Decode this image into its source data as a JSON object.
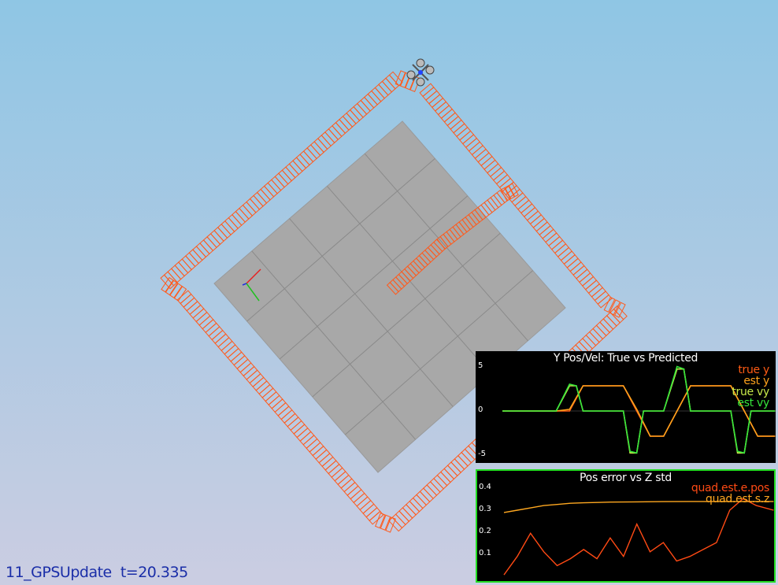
{
  "status": {
    "scenario": "11_GPSUpdate",
    "time_label": "t=20.335"
  },
  "colors": {
    "sky_top": "#8fc6e4",
    "sky_bottom": "#cbcde2",
    "floor": "#a8a8a8",
    "trajectory": "#ff5a1c",
    "plot_bg": "#000000",
    "plot2_border": "#22dd22"
  },
  "icons": {
    "quad": "quadrotor-icon",
    "axes": "xyz-axes-gizmo-icon"
  },
  "plot1": {
    "title": "Y Pos/Vel: True vs Predicted",
    "ticks": [
      "5",
      "0",
      "-5"
    ],
    "legend": [
      {
        "label": "true y",
        "color": "#ff5b14"
      },
      {
        "label": "est y",
        "color": "#ffa21c"
      },
      {
        "label": "true vy",
        "color": "#c7e84a"
      },
      {
        "label": "est vy",
        "color": "#35e53a"
      }
    ]
  },
  "plot2": {
    "title": "Pos error vs Z std",
    "ticks": [
      "0.4",
      "0.3",
      "0.2",
      "0.1"
    ],
    "legend": [
      {
        "label": "quad.est.e.pos",
        "color": "#ff4a14"
      },
      {
        "label": "quad.est.s.z",
        "color": "#ffa820"
      }
    ]
  },
  "chart_data": [
    {
      "type": "line",
      "title": "Y Pos/Vel: True vs Predicted",
      "x_range": [
        0,
        20.335
      ],
      "ylim": [
        -6,
        6
      ],
      "series": [
        {
          "name": "true y",
          "x": [
            0,
            4,
            5,
            6,
            9,
            10,
            11,
            12,
            13,
            14,
            17,
            18,
            19,
            20.3
          ],
          "values": [
            0,
            0,
            0,
            3,
            3,
            0,
            -3,
            -3,
            0,
            3,
            3,
            0,
            -3,
            -3
          ]
        },
        {
          "name": "est y",
          "x": [
            0,
            4,
            5,
            6,
            9,
            10,
            11,
            12,
            13,
            14,
            17,
            18,
            19,
            20.3
          ],
          "values": [
            0,
            0,
            0.2,
            3,
            3,
            0.2,
            -3,
            -3,
            0,
            3,
            3,
            0,
            -3,
            -3
          ]
        },
        {
          "name": "true vy",
          "x": [
            0,
            4,
            5,
            5.5,
            6,
            9,
            9.5,
            10,
            10.5,
            11,
            12,
            13,
            13.5,
            14,
            17,
            17.5,
            18,
            18.5,
            19,
            20.3
          ],
          "values": [
            0,
            0,
            3,
            3,
            0,
            0,
            -5,
            -5,
            0,
            0,
            0,
            5,
            5,
            0,
            0,
            -5,
            -5,
            0,
            0,
            0
          ]
        },
        {
          "name": "est vy",
          "x": [
            0,
            4,
            5,
            5.5,
            6,
            9,
            9.5,
            10,
            10.5,
            11,
            12,
            13,
            13.5,
            14,
            17,
            17.5,
            18,
            18.5,
            19,
            20.3
          ],
          "values": [
            0,
            0,
            3.2,
            3,
            0,
            0,
            -4.8,
            -5,
            0,
            0,
            0,
            5.3,
            5,
            0,
            0,
            -4.8,
            -5,
            0,
            0,
            0
          ]
        }
      ]
    },
    {
      "type": "line",
      "title": "Pos error vs Z std",
      "x_range": [
        0,
        20.335
      ],
      "ylim": [
        0,
        0.45
      ],
      "series": [
        {
          "name": "quad.est.e.pos",
          "x": [
            0,
            1,
            2,
            3,
            4,
            5,
            6,
            7,
            8,
            9,
            10,
            11,
            12,
            13,
            14,
            15,
            16,
            17,
            18,
            19,
            20.3
          ],
          "values": [
            0.02,
            0.1,
            0.2,
            0.12,
            0.06,
            0.09,
            0.13,
            0.09,
            0.18,
            0.1,
            0.24,
            0.12,
            0.16,
            0.08,
            0.1,
            0.13,
            0.16,
            0.3,
            0.35,
            0.32,
            0.3
          ]
        },
        {
          "name": "quad.est.s.z",
          "x": [
            0,
            1,
            2,
            3,
            4,
            5,
            6,
            8,
            10,
            12,
            14,
            16,
            18,
            20.3
          ],
          "values": [
            0.29,
            0.3,
            0.31,
            0.32,
            0.325,
            0.33,
            0.332,
            0.335,
            0.336,
            0.337,
            0.338,
            0.338,
            0.338,
            0.338
          ]
        }
      ]
    }
  ]
}
